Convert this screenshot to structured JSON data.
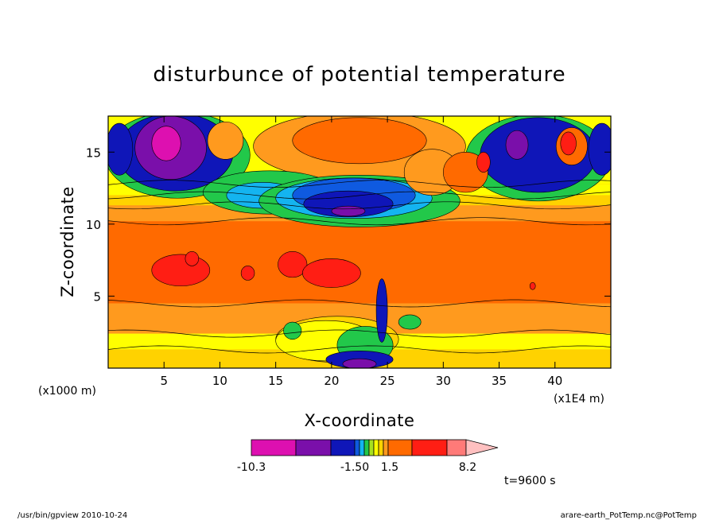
{
  "chart_data": {
    "type": "heatmap",
    "title": "disturbunce of potential temperature",
    "xlabel": "X-coordinate",
    "ylabel": "Z-coordinate",
    "x_unit": "(x1E4 m)",
    "y_unit": "(x1000 m)",
    "xlim": [
      0,
      45
    ],
    "ylim": [
      0,
      17.5
    ],
    "x_ticks": [
      "5",
      "10",
      "15",
      "20",
      "25",
      "30",
      "35",
      "40"
    ],
    "y_ticks": [
      "5",
      "10",
      "15"
    ],
    "colorbar_labels": [
      "-10.3",
      "-1.50",
      "1.5",
      "8.2"
    ],
    "colorbar_colors": [
      "#dd10b0",
      "#7a0faa",
      "#0f16b8",
      "#0f5ae0",
      "#14b4f0",
      "#22c84a",
      "#a8e020",
      "#ffff00",
      "#ffd200",
      "#ff9a1e",
      "#ff6a00",
      "#ff1e14",
      "#ff7a78",
      "#ffc0c0"
    ],
    "palette": {
      "magenta": "#dd10b0",
      "purple": "#7a0faa",
      "navy": "#0f16b8",
      "blue": "#0f5ae0",
      "cyan": "#14b4f0",
      "green": "#22c84a",
      "yellow": "#ffff00",
      "gold": "#ffd200",
      "lightorange": "#ff9a1e",
      "orange": "#ff6a00",
      "red": "#ff1e14",
      "salmon": "#ff7a78",
      "pink": "#ffc0c0"
    },
    "annotation": "t=9600 s"
  },
  "footer": {
    "left": "/usr/bin/gpview   2010-10-24",
    "right": "arare-earth_PotTemp.nc@PotTemp"
  }
}
